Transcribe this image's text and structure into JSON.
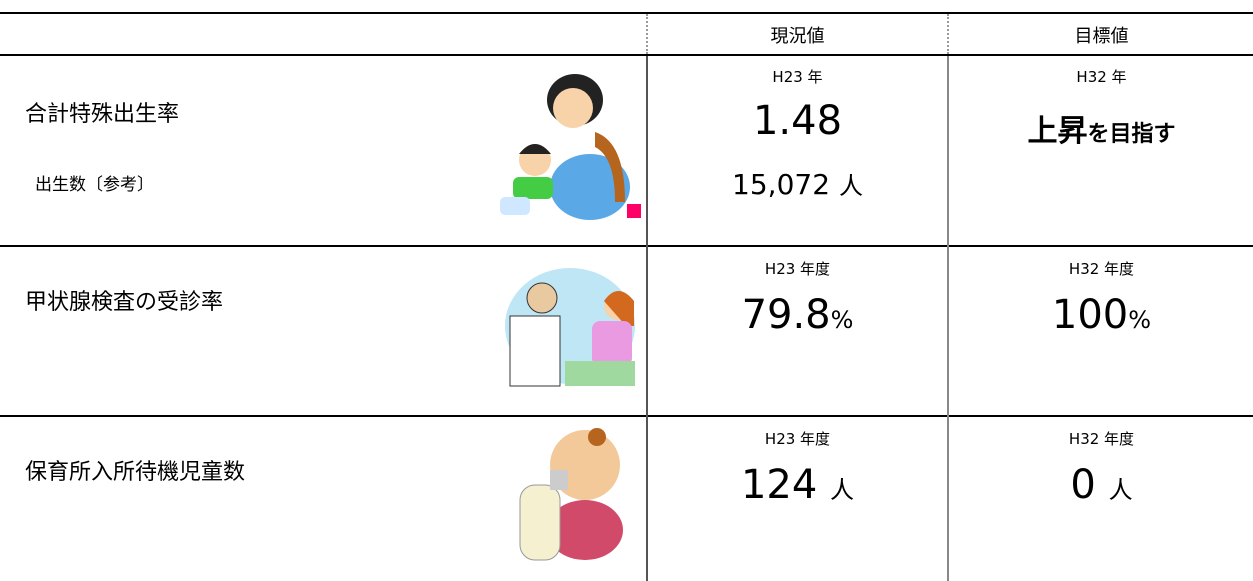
{
  "header": {
    "columns": [
      "現況値",
      "目標値"
    ]
  },
  "rows": [
    {
      "label": "合計特殊出生率",
      "sublabel": "出生数〔参考〕",
      "current": {
        "period": "H23 年",
        "value": "1.48",
        "sub_value": "15,072",
        "sub_unit": "人"
      },
      "target": {
        "period": "H32 年",
        "emphasis": "上昇",
        "text": "を目指す"
      }
    },
    {
      "label": "甲状腺検査の受診率",
      "current": {
        "period": "H23 年度",
        "value": "79.8",
        "unit": "%"
      },
      "target": {
        "period": "H32 年度",
        "value": "100",
        "unit": "%"
      }
    },
    {
      "label": "保育所入所待機児童数",
      "current": {
        "period": "H23 年度",
        "value": "124",
        "unit": "人"
      },
      "target": {
        "period": "H32 年度",
        "value": "0",
        "unit": "人"
      }
    }
  ]
}
